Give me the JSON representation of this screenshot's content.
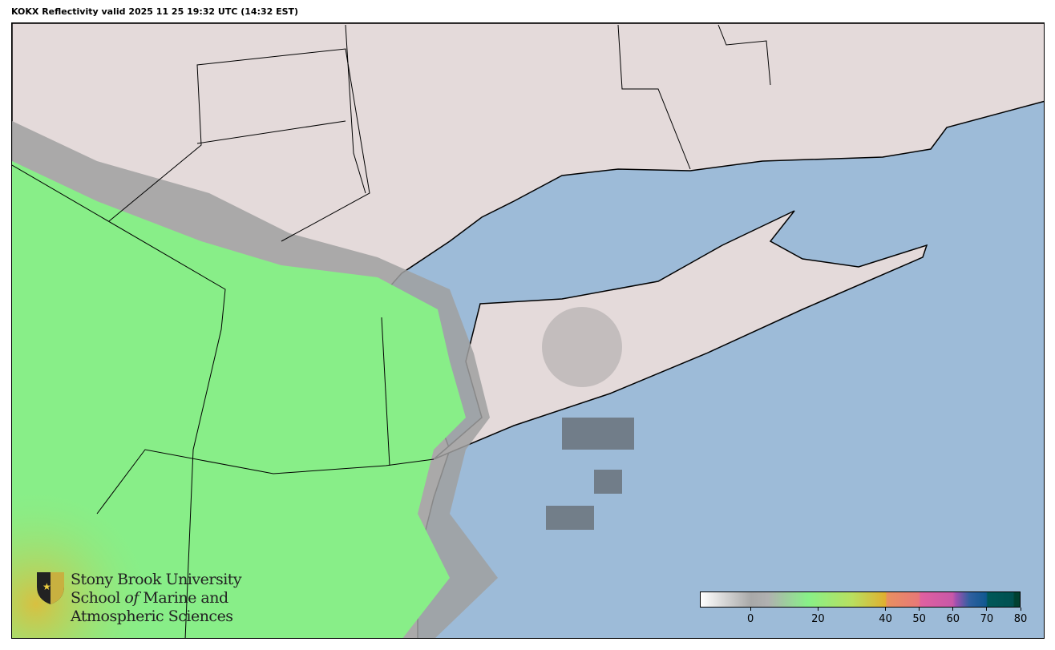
{
  "title": "KOKX Reflectivity valid 2025 11 25 19:32 UTC (14:32 EST)",
  "logo": {
    "line1": "Stony Brook University",
    "line2a": "School ",
    "line2b": "of",
    "line2c": " Marine and",
    "line3": "Atmospheric Sciences"
  },
  "colorbar": {
    "range": [
      -15,
      80
    ],
    "ticks": [
      {
        "value": 0,
        "label": "0"
      },
      {
        "value": 20,
        "label": "20"
      },
      {
        "value": 40,
        "label": "40"
      },
      {
        "value": 50,
        "label": "50"
      },
      {
        "value": 60,
        "label": "60"
      },
      {
        "value": 70,
        "label": "70"
      },
      {
        "value": 80,
        "label": "80"
      }
    ],
    "stops": [
      [
        -15,
        "#ffffff"
      ],
      [
        0,
        "#a8a8a8"
      ],
      [
        5,
        "#b0b0b0"
      ],
      [
        17,
        "#88f088"
      ],
      [
        30,
        "#b8e060"
      ],
      [
        40,
        "#e0b030"
      ],
      [
        40.5,
        "#e89060"
      ],
      [
        50,
        "#e87878"
      ],
      [
        50.5,
        "#e060a0"
      ],
      [
        60,
        "#c858a8"
      ],
      [
        61,
        "#a050b0"
      ],
      [
        65,
        "#3060a0"
      ],
      [
        70,
        "#105890"
      ],
      [
        70.5,
        "#005858"
      ],
      [
        78,
        "#005050"
      ],
      [
        78.5,
        "#004030"
      ],
      [
        80,
        "#004030"
      ]
    ]
  },
  "colors": {
    "ocean": "#9dbbd8",
    "land": "#e4dada",
    "precip_light": "#88ee88",
    "precip_gray": "#9a9a9a",
    "coast": "#000000"
  }
}
